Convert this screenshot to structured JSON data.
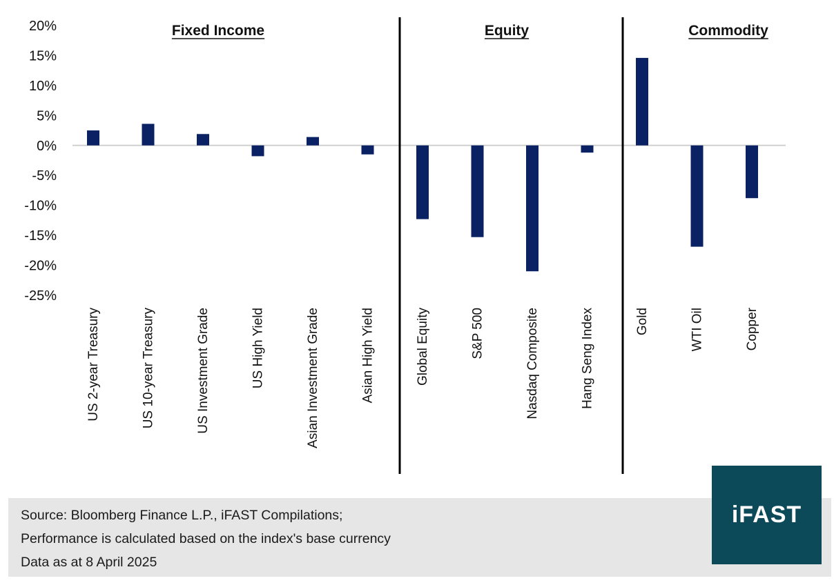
{
  "chart_data": {
    "type": "bar",
    "groups": [
      {
        "title": "Fixed Income",
        "categories": [
          "US 2-year Treasury",
          "US 10-year Treasury",
          "US Investment Grade",
          "US High Yield",
          "Asian Investment Grade",
          "Asian High Yield"
        ]
      },
      {
        "title": "Equity",
        "categories": [
          "Global Equity",
          "S&P 500",
          "Nasdaq Composite",
          "Hang Seng Index"
        ]
      },
      {
        "title": "Commodity",
        "categories": [
          "Gold",
          "WTI Oil",
          "Copper"
        ]
      }
    ],
    "categories": [
      "US 2-year Treasury",
      "US 10-year Treasury",
      "US Investment Grade",
      "US High Yield",
      "Asian Investment Grade",
      "Asian High Yield",
      "Global Equity",
      "S&P 500",
      "Nasdaq Composite",
      "Hang Seng Index",
      "Gold",
      "WTI Oil",
      "Copper"
    ],
    "values": [
      2.5,
      3.6,
      1.9,
      -1.8,
      1.4,
      -1.5,
      -12.3,
      -15.3,
      -21.0,
      -1.2,
      14.6,
      -16.9,
      -8.8
    ],
    "yticks": [
      "20%",
      "15%",
      "10%",
      "5%",
      "0%",
      "-5%",
      "-10%",
      "-15%",
      "-20%",
      "-25%"
    ],
    "ylim": [
      -25,
      20
    ],
    "grid": false,
    "bar_color": "#0a2264"
  },
  "footer": {
    "line1": "Source: Bloomberg Finance L.P., iFAST Compilations;",
    "line2": "Performance is calculated based on the index's base currency",
    "line3": "Data as at 8 April 2025"
  },
  "logo": {
    "text": "iFAST",
    "color": "#0c4a5a"
  }
}
